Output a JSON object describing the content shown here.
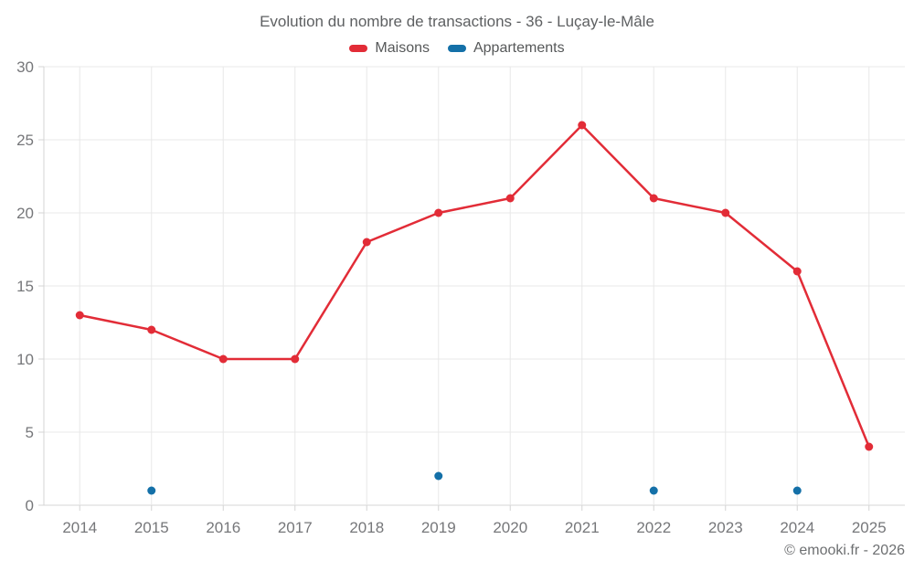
{
  "footer": {
    "copyright": "© emooki.fr - 2026"
  },
  "chart_data": {
    "type": "line",
    "title": "Evolution du nombre de transactions - 36 - Luçay-le-Mâle",
    "categories": [
      "2014",
      "2015",
      "2016",
      "2017",
      "2018",
      "2019",
      "2020",
      "2021",
      "2022",
      "2023",
      "2024",
      "2025"
    ],
    "series": [
      {
        "name": "Maisons",
        "type": "line",
        "color": "#e22c37",
        "values": [
          13,
          12,
          10,
          10,
          18,
          20,
          21,
          26,
          21,
          20,
          16,
          4
        ]
      },
      {
        "name": "Appartements",
        "type": "scatter",
        "color": "#1470a8",
        "values": [
          null,
          1,
          null,
          null,
          null,
          2,
          null,
          null,
          1,
          null,
          1,
          null
        ]
      }
    ],
    "xlabel": "",
    "ylabel": "",
    "ylim": [
      0,
      30
    ],
    "yticks": [
      0,
      5,
      10,
      15,
      20,
      25,
      30
    ],
    "grid": true,
    "legend_position": "top",
    "colors": {
      "gridline": "#e8e8e8",
      "axis_line": "#d4d4d4",
      "tick_label": "#76777a"
    }
  }
}
